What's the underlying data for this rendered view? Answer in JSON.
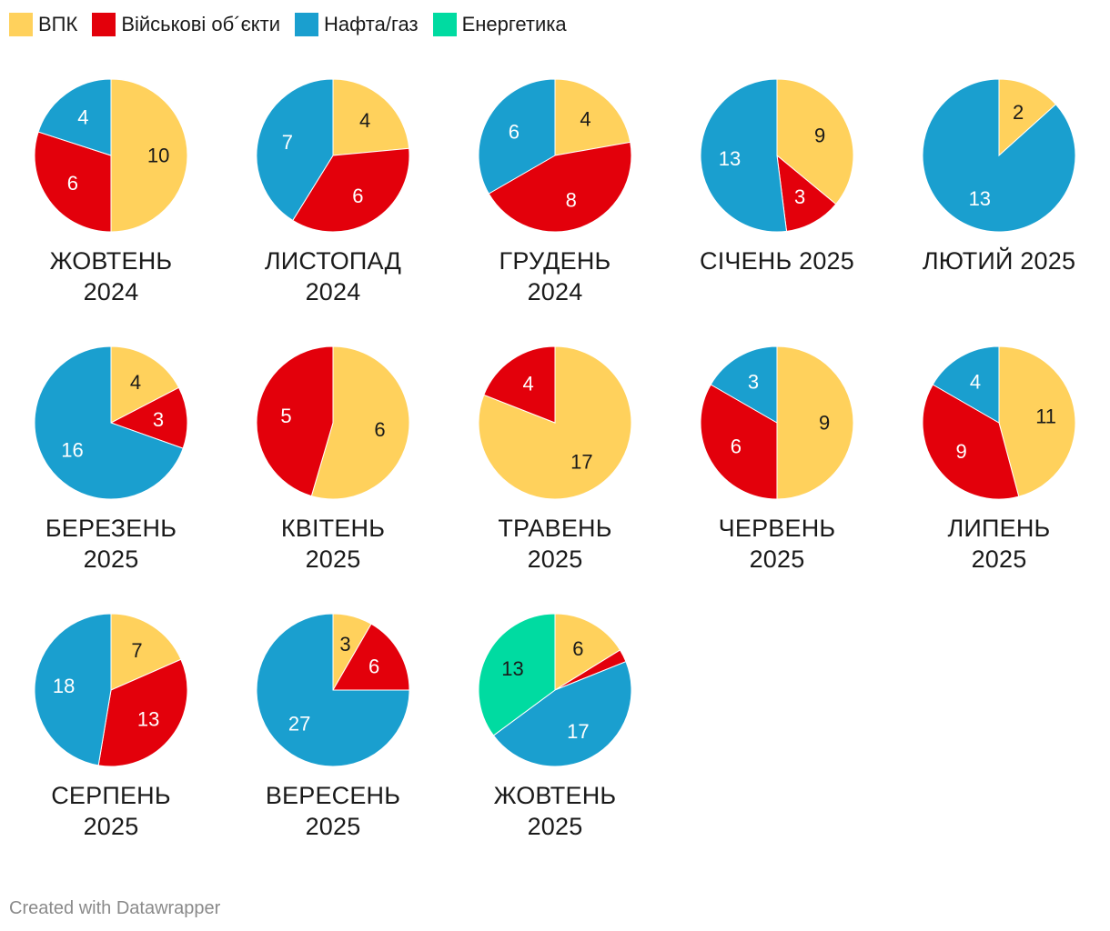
{
  "legend": [
    {
      "name": "ВПК",
      "color": "#ffd15c"
    },
    {
      "name": "Військові об´єкти",
      "color": "#e3000b"
    },
    {
      "name": "Нафта/газ",
      "color": "#1a9fcf"
    },
    {
      "name": "Енергетика",
      "color": "#00dba1"
    }
  ],
  "chart_data": [
    {
      "type": "pie",
      "title_line1": "ЖОВТЕНЬ",
      "title_line2": "2024",
      "slices": [
        {
          "category": "ВПК",
          "value": 10
        },
        {
          "category": "Військові об´єкти",
          "value": 6
        },
        {
          "category": "Нафта/газ",
          "value": 4
        }
      ]
    },
    {
      "type": "pie",
      "title_line1": "ЛИСТОПАД",
      "title_line2": "2024",
      "slices": [
        {
          "category": "ВПК",
          "value": 4
        },
        {
          "category": "Військові об´єкти",
          "value": 6
        },
        {
          "category": "Нафта/газ",
          "value": 7
        }
      ]
    },
    {
      "type": "pie",
      "title_line1": "ГРУДЕНЬ",
      "title_line2": "2024",
      "slices": [
        {
          "category": "ВПК",
          "value": 4
        },
        {
          "category": "Військові об´єкти",
          "value": 8
        },
        {
          "category": "Нафта/газ",
          "value": 6
        }
      ]
    },
    {
      "type": "pie",
      "title_line1": "СІЧЕНЬ 2025",
      "title_line2": "",
      "slices": [
        {
          "category": "ВПК",
          "value": 9
        },
        {
          "category": "Військові об´єкти",
          "value": 3
        },
        {
          "category": "Нафта/газ",
          "value": 13
        }
      ]
    },
    {
      "type": "pie",
      "title_line1": "ЛЮТИЙ 2025",
      "title_line2": "",
      "slices": [
        {
          "category": "ВПК",
          "value": 2
        },
        {
          "category": "Нафта/газ",
          "value": 13
        }
      ]
    },
    {
      "type": "pie",
      "title_line1": "БЕРЕЗЕНЬ",
      "title_line2": "2025",
      "slices": [
        {
          "category": "ВПК",
          "value": 4
        },
        {
          "category": "Військові об´єкти",
          "value": 3
        },
        {
          "category": "Нафта/газ",
          "value": 16
        }
      ]
    },
    {
      "type": "pie",
      "title_line1": "КВІТЕНЬ",
      "title_line2": "2025",
      "slices": [
        {
          "category": "ВПК",
          "value": 6
        },
        {
          "category": "Військові об´єкти",
          "value": 5
        }
      ]
    },
    {
      "type": "pie",
      "title_line1": "ТРАВЕНЬ",
      "title_line2": "2025",
      "slices": [
        {
          "category": "ВПК",
          "value": 17
        },
        {
          "category": "Військові об´єкти",
          "value": 4
        }
      ]
    },
    {
      "type": "pie",
      "title_line1": "ЧЕРВЕНЬ",
      "title_line2": "2025",
      "slices": [
        {
          "category": "ВПК",
          "value": 9
        },
        {
          "category": "Військові об´єкти",
          "value": 6
        },
        {
          "category": "Нафта/газ",
          "value": 3
        }
      ]
    },
    {
      "type": "pie",
      "title_line1": "ЛИПЕНЬ",
      "title_line2": "2025",
      "slices": [
        {
          "category": "ВПК",
          "value": 11
        },
        {
          "category": "Військові об´єкти",
          "value": 9
        },
        {
          "category": "Нафта/газ",
          "value": 4
        }
      ]
    },
    {
      "type": "pie",
      "title_line1": "СЕРПЕНЬ",
      "title_line2": "2025",
      "slices": [
        {
          "category": "ВПК",
          "value": 7
        },
        {
          "category": "Військові об´єкти",
          "value": 13
        },
        {
          "category": "Нафта/газ",
          "value": 18
        }
      ]
    },
    {
      "type": "pie",
      "title_line1": "ВЕРЕСЕНЬ",
      "title_line2": "2025",
      "slices": [
        {
          "category": "ВПК",
          "value": 3
        },
        {
          "category": "Військові об´єкти",
          "value": 6
        },
        {
          "category": "Нафта/газ",
          "value": 27
        }
      ]
    },
    {
      "type": "pie",
      "title_line1": "ЖОВТЕНЬ",
      "title_line2": "2025",
      "slices": [
        {
          "category": "ВПК",
          "value": 6
        },
        {
          "category": "Військові об´єкти",
          "value": 1,
          "label_hidden": true
        },
        {
          "category": "Нафта/газ",
          "value": 17
        },
        {
          "category": "Енергетика",
          "value": 13
        }
      ]
    }
  ],
  "footer": {
    "credit": "Created with Datawrapper"
  }
}
